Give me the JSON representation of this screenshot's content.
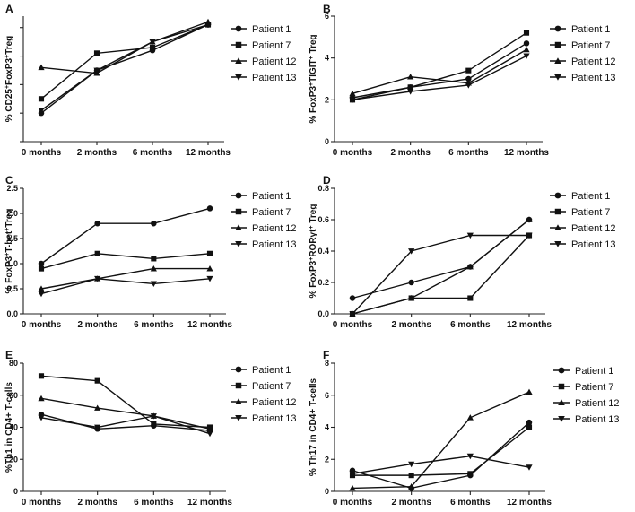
{
  "chart_data": [
    {
      "panel": "A",
      "type": "line",
      "ylabel": "% CD25+FoxP3+Treg",
      "ylabel_sup": [
        "+",
        "+"
      ],
      "categories": [
        "0 months",
        "2 months",
        "6 months",
        "12 months"
      ],
      "ylim": [
        2,
        6.4
      ],
      "yticks": [],
      "series": [
        {
          "name": "Patient 1",
          "marker": "circle",
          "values": [
            3.0,
            4.5,
            5.2,
            6.1
          ]
        },
        {
          "name": "Patient 7",
          "marker": "square",
          "values": [
            3.5,
            5.1,
            5.3,
            6.1
          ]
        },
        {
          "name": "Patient 12",
          "marker": "triangle-up",
          "values": [
            4.6,
            4.4,
            5.5,
            6.2
          ]
        },
        {
          "name": "Patient 13",
          "marker": "triangle-down",
          "values": [
            3.1,
            4.5,
            5.5,
            6.1
          ]
        }
      ]
    },
    {
      "panel": "B",
      "type": "line",
      "ylabel": "% FoxP3+TIGIT+ Treg",
      "categories": [
        "0 months",
        "2 months",
        "6 months",
        "12 months"
      ],
      "ylim": [
        0,
        6
      ],
      "yticks": [
        "0",
        "2",
        "4",
        "6"
      ],
      "series": [
        {
          "name": "Patient 1",
          "marker": "circle",
          "values": [
            2.1,
            2.6,
            3.0,
            4.7
          ]
        },
        {
          "name": "Patient 7",
          "marker": "square",
          "values": [
            2.0,
            2.6,
            3.4,
            5.2
          ]
        },
        {
          "name": "Patient 12",
          "marker": "triangle-up",
          "values": [
            2.3,
            3.1,
            2.8,
            4.4
          ]
        },
        {
          "name": "Patient 13",
          "marker": "triangle-down",
          "values": [
            2.0,
            2.4,
            2.7,
            4.1
          ]
        }
      ]
    },
    {
      "panel": "C",
      "type": "line",
      "ylabel": "% FoxP3+T-bet+Treg",
      "categories": [
        "0 months",
        "2 months",
        "6 months",
        "12 months"
      ],
      "ylim": [
        0,
        2.5
      ],
      "yticks": [
        "0.0",
        "0.5",
        "1.0",
        "1.5",
        "2.0",
        "2.5"
      ],
      "series": [
        {
          "name": "Patient 1",
          "marker": "circle",
          "values": [
            1.0,
            1.8,
            1.8,
            2.1
          ]
        },
        {
          "name": "Patient 7",
          "marker": "square",
          "values": [
            0.9,
            1.2,
            1.1,
            1.2
          ]
        },
        {
          "name": "Patient 12",
          "marker": "triangle-up",
          "values": [
            0.5,
            0.7,
            0.9,
            0.9
          ]
        },
        {
          "name": "Patient 13",
          "marker": "triangle-down",
          "values": [
            0.4,
            0.7,
            0.6,
            0.7
          ]
        }
      ]
    },
    {
      "panel": "D",
      "type": "line",
      "ylabel": "% FoxP3+RORγt+ Treg",
      "categories": [
        "0 months",
        "2 months",
        "6 months",
        "12 months"
      ],
      "ylim": [
        0,
        0.8
      ],
      "yticks": [
        "0.0",
        "0.2",
        "0.4",
        "0.6",
        "0.8"
      ],
      "series": [
        {
          "name": "Patient 1",
          "marker": "circle",
          "values": [
            0.1,
            0.2,
            0.3,
            0.6
          ]
        },
        {
          "name": "Patient 7",
          "marker": "square",
          "values": [
            0.0,
            0.1,
            0.1,
            0.5
          ]
        },
        {
          "name": "Patient 12",
          "marker": "triangle-up",
          "values": [
            0.0,
            0.1,
            0.3,
            0.6
          ]
        },
        {
          "name": "Patient 13",
          "marker": "triangle-down",
          "values": [
            0.0,
            0.4,
            0.5,
            0.5
          ]
        }
      ]
    },
    {
      "panel": "E",
      "type": "line",
      "ylabel": "%Th1 in CD4+ T-cells",
      "categories": [
        "0 months",
        "2 months",
        "6 months",
        "12 months"
      ],
      "ylim": [
        0,
        80
      ],
      "yticks": [
        "0",
        "20",
        "40",
        "60",
        "80"
      ],
      "series": [
        {
          "name": "Patient 1",
          "marker": "circle",
          "values": [
            48,
            39,
            41,
            38
          ]
        },
        {
          "name": "Patient 7",
          "marker": "square",
          "values": [
            72,
            69,
            42,
            40
          ]
        },
        {
          "name": "Patient 12",
          "marker": "triangle-up",
          "values": [
            58,
            52,
            47,
            39
          ]
        },
        {
          "name": "Patient 13",
          "marker": "triangle-down",
          "values": [
            46,
            40,
            47,
            36
          ]
        }
      ]
    },
    {
      "panel": "F",
      "type": "line",
      "ylabel": "% Th17 in CD4+ T-cells",
      "categories": [
        "0 months",
        "2 months",
        "6 months",
        "12 months"
      ],
      "ylim": [
        0,
        8
      ],
      "yticks": [
        "0",
        "2",
        "4",
        "6",
        "8"
      ],
      "series": [
        {
          "name": "Patient 1",
          "marker": "circle",
          "values": [
            1.3,
            0.2,
            1.0,
            4.3
          ]
        },
        {
          "name": "Patient 7",
          "marker": "square",
          "values": [
            1.0,
            1.0,
            1.1,
            4.0
          ]
        },
        {
          "name": "Patient 12",
          "marker": "triangle-up",
          "values": [
            0.2,
            0.3,
            4.6,
            6.2
          ]
        },
        {
          "name": "Patient 13",
          "marker": "triangle-down",
          "values": [
            1.1,
            1.7,
            2.2,
            1.5
          ]
        }
      ]
    }
  ]
}
